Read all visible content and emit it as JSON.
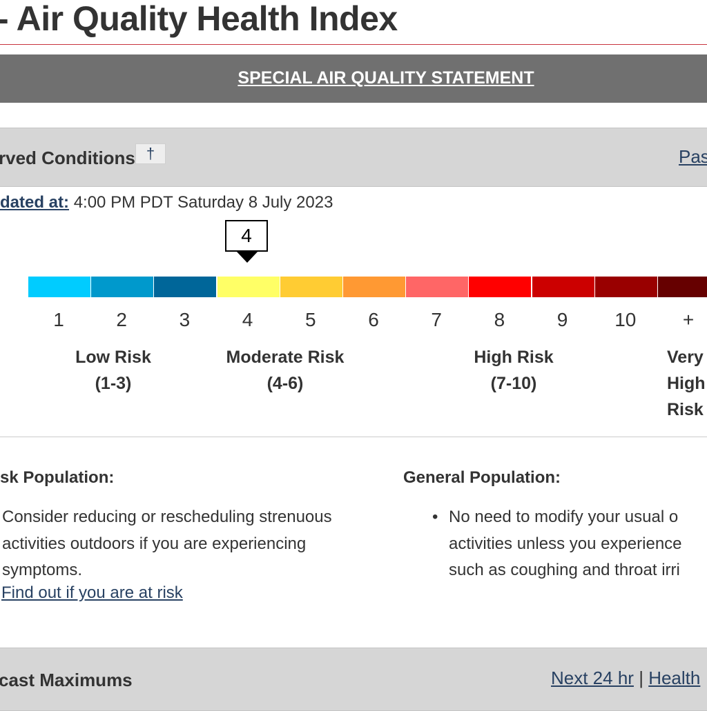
{
  "header": {
    "title": "- Air Quality Health Index"
  },
  "banner": {
    "statement_label": "SPECIAL AIR QUALITY STATEMENT"
  },
  "observed": {
    "title": "rved Conditions",
    "info_icon": "dagger-icon",
    "info_glyph": "†",
    "past_link": "Pas",
    "updated_label": "dated at:",
    "updated_value": "4:00 PM PDT Saturday 8 July 2023",
    "current_index": "4",
    "scale_colors": [
      "#00ccff",
      "#0099cc",
      "#006699",
      "#ffff66",
      "#ffcc33",
      "#ff9933",
      "#ff6666",
      "#ff0000",
      "#cc0000",
      "#990000",
      "#660000"
    ],
    "scale_ticks": [
      "1",
      "2",
      "3",
      "4",
      "5",
      "6",
      "7",
      "8",
      "9",
      "10",
      "+"
    ],
    "risk_levels": [
      {
        "name": "Low Risk",
        "range": "(1-3)"
      },
      {
        "name": "Moderate Risk",
        "range": "(4-6)"
      },
      {
        "name": "High Risk",
        "range": "(7-10)"
      },
      {
        "name_lines": [
          "Very",
          "High",
          "Risk"
        ]
      }
    ]
  },
  "populations": {
    "at_risk": {
      "title": "sk Population:",
      "text_lines": [
        "Consider reducing or rescheduling strenuous",
        "activities outdoors if you are experiencing",
        "symptoms."
      ],
      "link": "Find out if you are at risk"
    },
    "general": {
      "title": "General Population:",
      "text_lines": [
        "No need to modify your usual o",
        "activities unless you experience",
        "such as coughing and throat irri"
      ]
    }
  },
  "forecast": {
    "title": "cast Maximums",
    "next_link": "Next 24 hr",
    "separator": "|",
    "health_link": "Health"
  },
  "colors": {
    "accent_rule": "#c8323c",
    "banner_bg": "#707070",
    "section_bg": "#d6d6d6",
    "link": "#284162"
  }
}
